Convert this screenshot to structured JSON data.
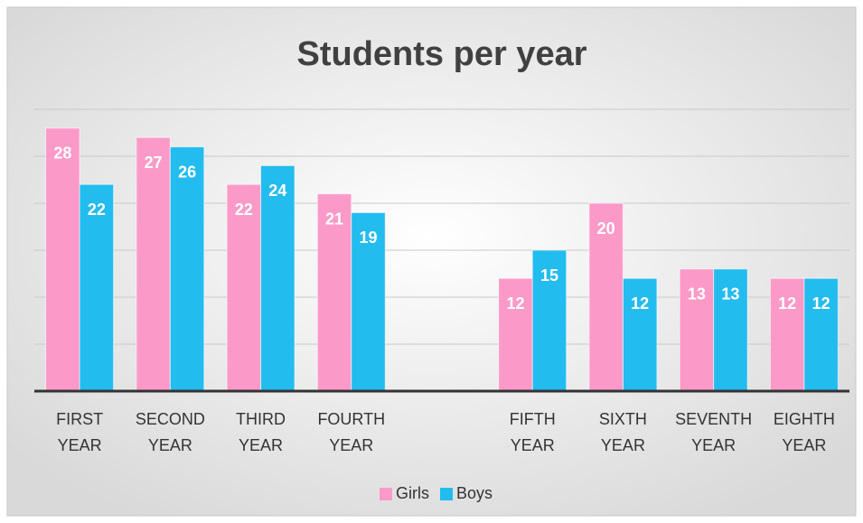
{
  "chart_data": {
    "type": "bar",
    "title": "Students per year",
    "categories": [
      "FIRST YEAR",
      "SECOND YEAR",
      "THIRD YEAR",
      "FOURTH YEAR",
      null,
      "FIFTH YEAR",
      "SIXTH YEAR",
      "SEVENTH YEAR",
      "EIGHTH YEAR"
    ],
    "series": [
      {
        "name": "Girls",
        "color": "#fb9ac8",
        "values": [
          28,
          27,
          22,
          21,
          null,
          12,
          20,
          13,
          12
        ]
      },
      {
        "name": "Boys",
        "color": "#23bcee",
        "values": [
          22,
          26,
          24,
          19,
          null,
          15,
          12,
          13,
          12
        ]
      }
    ],
    "ylim": [
      0,
      30
    ],
    "yticks": [
      0,
      5,
      10,
      15,
      20,
      25,
      30
    ],
    "grid": true,
    "legend": "bottom"
  }
}
